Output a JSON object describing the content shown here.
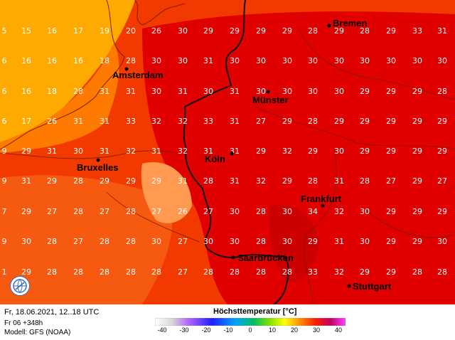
{
  "map": {
    "cities": [
      {
        "name": "Bremen"
      },
      {
        "name": "Amsterdam"
      },
      {
        "name": "Münster"
      },
      {
        "name": "Bruxelles"
      },
      {
        "name": "Köln"
      },
      {
        "name": "Frankfurt"
      },
      {
        "name": "Saarbrücken"
      },
      {
        "name": "Stuttgart"
      }
    ],
    "grid_values": [
      [
        "5",
        "15",
        "16",
        "17",
        "19",
        "20",
        "26",
        "30",
        "29",
        "29",
        "29",
        "29",
        "28",
        "29",
        "28",
        "29",
        "33",
        "31"
      ],
      [
        "6",
        "16",
        "16",
        "16",
        "18",
        "28",
        "30",
        "30",
        "31",
        "30",
        "30",
        "30",
        "30",
        "30",
        "30",
        "30",
        "30",
        "30"
      ],
      [
        "6",
        "16",
        "18",
        "28",
        "31",
        "31",
        "30",
        "31",
        "30",
        "31",
        "30",
        "30",
        "30",
        "30",
        "29",
        "29",
        "29",
        "28"
      ],
      [
        "6",
        "17",
        "26",
        "31",
        "31",
        "33",
        "32",
        "32",
        "33",
        "31",
        "27",
        "29",
        "28",
        "29",
        "29",
        "29",
        "29",
        "29"
      ],
      [
        "9",
        "29",
        "31",
        "30",
        "31",
        "32",
        "31",
        "32",
        "31",
        "31",
        "29",
        "32",
        "29",
        "30",
        "29",
        "29",
        "29",
        "29"
      ],
      [
        "9",
        "31",
        "29",
        "28",
        "29",
        "29",
        "29",
        "31",
        "28",
        "31",
        "32",
        "29",
        "28",
        "31",
        "28",
        "27",
        "29",
        "27"
      ],
      [
        "7",
        "29",
        "27",
        "28",
        "27",
        "28",
        "27",
        "26",
        "27",
        "30",
        "28",
        "30",
        "34",
        "32",
        "30",
        "29",
        "29",
        "29"
      ],
      [
        "9",
        "30",
        "28",
        "27",
        "28",
        "28",
        "30",
        "27",
        "30",
        "30",
        "28",
        "30",
        "29",
        "31",
        "30",
        "29",
        "29",
        "30"
      ],
      [
        "1",
        "29",
        "28",
        "28",
        "28",
        "28",
        "28",
        "27",
        "28",
        "28",
        "28",
        "28",
        "33",
        "32",
        "29",
        "29",
        "28",
        "28"
      ]
    ],
    "colors": {
      "hot": "#e00000",
      "warm": "#f23a00",
      "mild": "#ff7a00",
      "cool": "#ffaa00",
      "coast": "#ff9e00",
      "border": "#111111",
      "value_text": "#ffffff"
    }
  },
  "footer": {
    "run_time": "Fr, 18.06.2021, 12..18 UTC",
    "step": "Fr 06 +348h",
    "model": "Modell: GFS (NOAA)",
    "legend_title": "Höchsttemperatur [°C]",
    "legend_ticks": [
      "-40",
      "-30",
      "-20",
      "-10",
      "0",
      "10",
      "20",
      "30",
      "40"
    ]
  },
  "logo": {
    "icon": "wetter-globe-icon"
  }
}
